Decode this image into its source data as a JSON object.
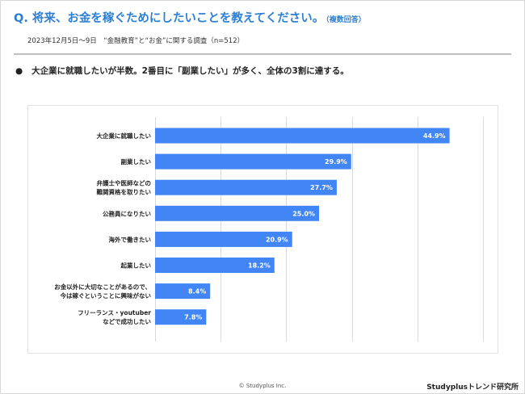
{
  "header": {
    "title": "Q. 将来、お金を稼ぐためにしたいことを教えてください。",
    "title_note": "（複数回答）",
    "survey_info": "2023年12月5日〜9日　“金融教育”と“お金”に関する調査（n=512）"
  },
  "summary": {
    "bullet": "●",
    "text": "大企業に就職したいが半数。2番目に「副業したい」が多く、全体の3割に達する。"
  },
  "chart_data": {
    "type": "bar",
    "orientation": "horizontal",
    "categories": [
      [
        "大企業に就職したい"
      ],
      [
        "副業したい"
      ],
      [
        "弁護士や医師などの",
        "難関資格を取りたい"
      ],
      [
        "公務員になりたい"
      ],
      [
        "海外で働きたい"
      ],
      [
        "起業したい"
      ],
      [
        "お金以外に大切なことがあるので、",
        "今は稼ぐということに興味がない"
      ],
      [
        "フリーランス・youtuber",
        "などで成功したい"
      ]
    ],
    "values": [
      44.9,
      29.9,
      27.7,
      25.0,
      20.9,
      18.2,
      8.4,
      7.8
    ],
    "value_labels": [
      "44.9%",
      "29.9%",
      "27.7%",
      "25.0%",
      "20.9%",
      "18.2%",
      "8.4%",
      "7.8%"
    ],
    "xlim": [
      0,
      50
    ],
    "grid": true,
    "bar_color": "#4285f4",
    "grid_color": "#d9d9d9",
    "label_color": "#ffffff"
  },
  "footer": {
    "copyright": "© Studyplus Inc.",
    "brand": "Studyplusトレンド研究所"
  }
}
